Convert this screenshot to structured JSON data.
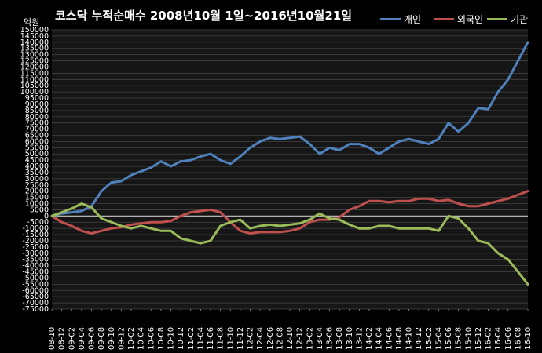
{
  "chart_data": {
    "type": "line",
    "title": "코스닥 누적순매수 2008년10월 1일~2016년10월21일",
    "ylabel": "억원",
    "ylim": [
      -75000,
      150000
    ],
    "y_tick_step": 5000,
    "grid": true,
    "legend_position": "top-right",
    "categories": [
      "08-10",
      "08-12",
      "09-02",
      "09-04",
      "09-06",
      "09-08",
      "09-10",
      "09-12",
      "10-02",
      "10-04",
      "10-06",
      "10-08",
      "10-10",
      "10-12",
      "11-02",
      "11-04",
      "11-06",
      "11-08",
      "11-10",
      "11-12",
      "12-02",
      "12-04",
      "12-06",
      "12-08",
      "12-10",
      "12-12",
      "13-02",
      "13-04",
      "13-06",
      "13-08",
      "13-10",
      "13-12",
      "14-02",
      "14-04",
      "14-06",
      "14-08",
      "14-10",
      "14-12",
      "15-02",
      "15-04",
      "15-06",
      "15-08",
      "15-10",
      "15-12",
      "16-02",
      "16-04",
      "16-06",
      "16-08",
      "16-10"
    ],
    "series": [
      {
        "name": "개인",
        "color": "#4f81bd",
        "values": [
          0,
          2000,
          3000,
          4000,
          8000,
          20000,
          27000,
          28000,
          33000,
          36000,
          39000,
          44000,
          40000,
          44000,
          45000,
          48000,
          50000,
          45000,
          42000,
          48000,
          55000,
          60000,
          63000,
          62000,
          63000,
          64000,
          58000,
          50000,
          55000,
          53000,
          58000,
          58000,
          55000,
          50000,
          55000,
          60000,
          62000,
          60000,
          58000,
          62000,
          75000,
          68000,
          75000,
          87000,
          86000,
          100000,
          110000,
          125000,
          140000
        ]
      },
      {
        "name": "외국인",
        "color": "#c0504d",
        "values": [
          0,
          -5000,
          -8000,
          -12000,
          -14000,
          -12000,
          -10000,
          -9000,
          -7000,
          -6000,
          -5000,
          -5000,
          -4000,
          0,
          3000,
          4000,
          5000,
          3000,
          -5000,
          -12000,
          -14000,
          -13000,
          -13000,
          -13000,
          -12000,
          -10000,
          -5000,
          -3000,
          -3000,
          -1000,
          5000,
          8000,
          12000,
          12000,
          11000,
          12000,
          12000,
          14000,
          14000,
          12000,
          13000,
          10000,
          8000,
          8000,
          10000,
          12000,
          14000,
          17000,
          20000
        ]
      },
      {
        "name": "기관",
        "color": "#9bbb59",
        "values": [
          0,
          3000,
          6000,
          10000,
          7000,
          -2000,
          -5000,
          -8000,
          -10000,
          -8000,
          -10000,
          -12000,
          -12000,
          -18000,
          -20000,
          -22000,
          -20000,
          -8000,
          -5000,
          -3000,
          -10000,
          -8000,
          -7000,
          -8000,
          -7000,
          -6000,
          -3000,
          2000,
          -2000,
          -3000,
          -7000,
          -10000,
          -10000,
          -8000,
          -8000,
          -10000,
          -10000,
          -10000,
          -10000,
          -12000,
          0,
          -2000,
          -10000,
          -20000,
          -22000,
          -30000,
          -35000,
          -45000,
          -55000
        ]
      }
    ]
  }
}
